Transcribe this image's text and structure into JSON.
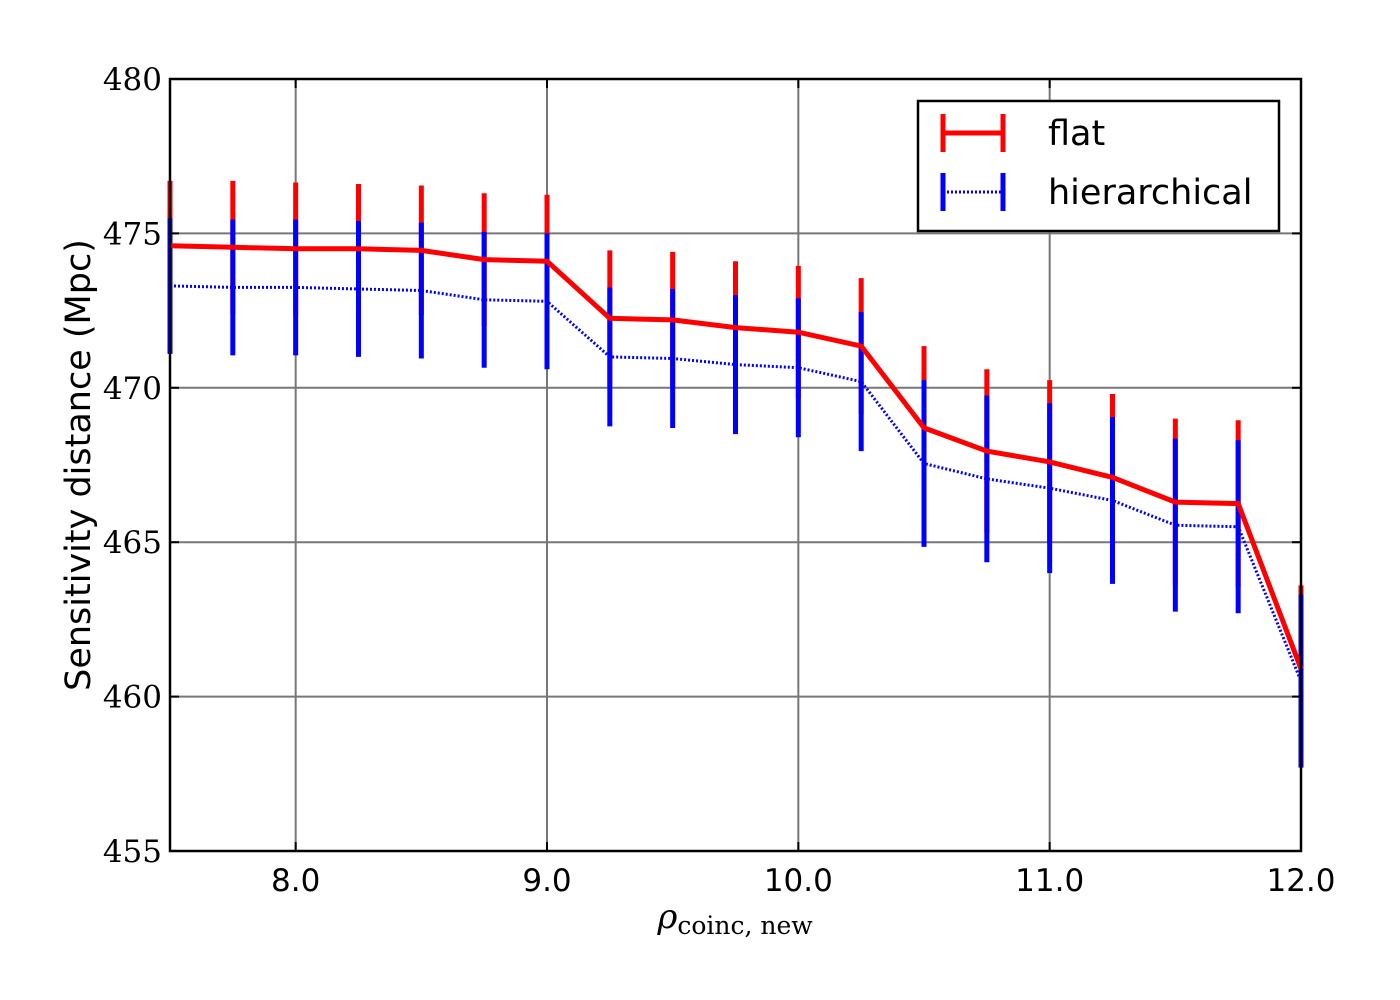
{
  "chart_data": {
    "type": "line",
    "xlabel": "ρ",
    "xlabel_subscript": "coinc, new",
    "ylabel": "Sensitivity distance (Mpc)",
    "xlim": [
      7.5,
      12.0
    ],
    "ylim": [
      455,
      480
    ],
    "xticks": [
      8.0,
      9.0,
      10.0,
      11.0,
      12.0
    ],
    "xtick_labels": [
      "8.0",
      "9.0",
      "10.0",
      "11.0",
      "12.0"
    ],
    "yticks": [
      455,
      460,
      465,
      470,
      475,
      480
    ],
    "ytick_labels": [
      "455",
      "460",
      "465",
      "470",
      "475",
      "480"
    ],
    "grid": true,
    "legend_position": "top-right",
    "x": [
      7.5,
      7.75,
      8.0,
      8.25,
      8.5,
      8.75,
      9.0,
      9.25,
      9.5,
      9.75,
      10.0,
      10.25,
      10.5,
      10.75,
      11.0,
      11.25,
      11.5,
      11.75,
      12.0
    ],
    "series": [
      {
        "name": "flat",
        "color": "#ff0000",
        "style": "solid",
        "values": [
          474.6,
          474.55,
          474.5,
          474.5,
          474.45,
          474.15,
          474.1,
          472.25,
          472.2,
          471.95,
          471.8,
          471.35,
          468.7,
          467.95,
          467.6,
          467.1,
          466.3,
          466.25,
          460.9
        ],
        "errors": [
          2.1,
          2.15,
          2.15,
          2.1,
          2.1,
          2.15,
          2.15,
          2.2,
          2.2,
          2.15,
          2.15,
          2.2,
          2.65,
          2.65,
          2.65,
          2.7,
          2.7,
          2.7,
          2.7
        ]
      },
      {
        "name": "hierarchical",
        "color": "#0000ff",
        "style": "dotted",
        "values": [
          473.3,
          473.25,
          473.25,
          473.2,
          473.15,
          472.85,
          472.8,
          471.0,
          470.95,
          470.75,
          470.65,
          470.2,
          467.55,
          467.05,
          466.75,
          466.35,
          465.55,
          465.5,
          460.5
        ],
        "errors": [
          2.2,
          2.2,
          2.2,
          2.2,
          2.2,
          2.2,
          2.2,
          2.25,
          2.25,
          2.25,
          2.25,
          2.25,
          2.7,
          2.7,
          2.75,
          2.7,
          2.8,
          2.8,
          2.8
        ]
      }
    ]
  }
}
